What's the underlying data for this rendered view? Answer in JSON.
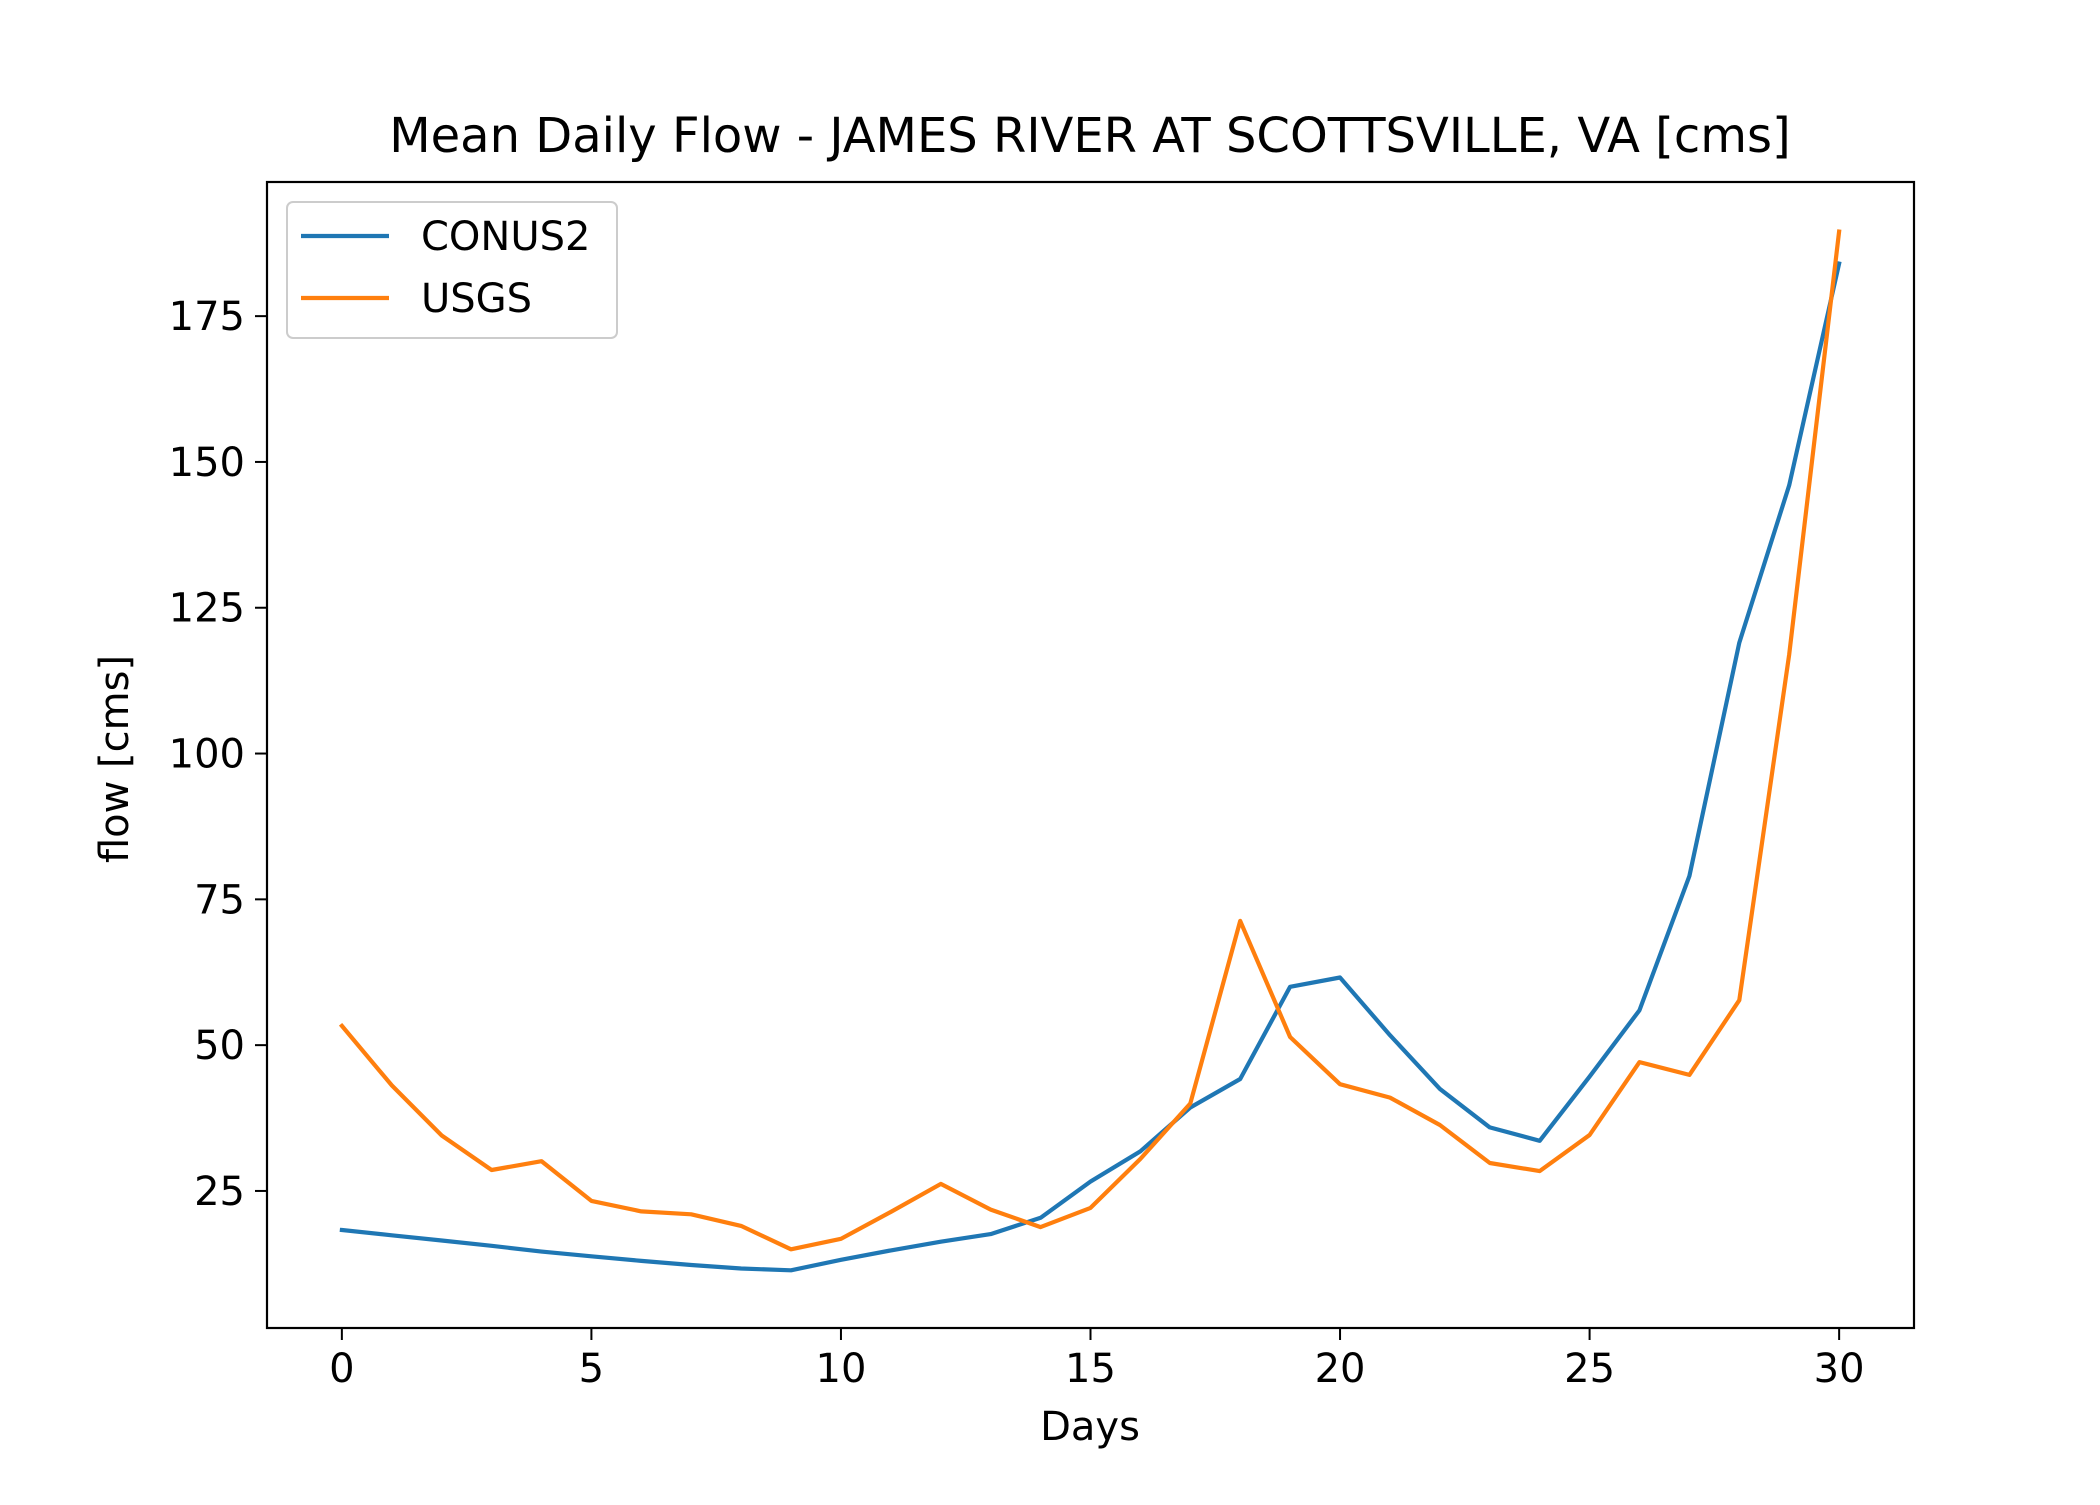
{
  "chart_data": {
    "type": "line",
    "title": "Mean Daily Flow - JAMES RIVER AT SCOTTSVILLE, VA [cms]",
    "xlabel": "Days",
    "ylabel": "flow [cms]",
    "xlim": [
      -1.5,
      31.5
    ],
    "ylim": [
      1.5,
      198
    ],
    "xticks": [
      0,
      5,
      10,
      15,
      20,
      25,
      30
    ],
    "yticks": [
      25,
      50,
      75,
      100,
      125,
      150,
      175
    ],
    "grid": false,
    "legend_position": "upper left",
    "x": [
      0,
      1,
      2,
      3,
      4,
      5,
      6,
      7,
      8,
      9,
      10,
      11,
      12,
      13,
      14,
      15,
      16,
      17,
      18,
      19,
      20,
      21,
      22,
      23,
      24,
      25,
      26,
      27,
      28,
      29,
      30
    ],
    "series": [
      {
        "name": "CONUS2",
        "color": "#1f77b4",
        "values": [
          18.3,
          17.4,
          16.5,
          15.6,
          14.6,
          13.8,
          13.0,
          12.3,
          11.7,
          11.4,
          13.2,
          14.8,
          16.3,
          17.6,
          20.4,
          26.6,
          31.8,
          39.3,
          44.2,
          60.0,
          61.6,
          51.7,
          42.5,
          35.9,
          33.6,
          44.6,
          56.0,
          79.0,
          119.0,
          146.0,
          184.0
        ]
      },
      {
        "name": "USGS",
        "color": "#ff7f0e",
        "values": [
          53.3,
          43.1,
          34.5,
          28.6,
          30.1,
          23.3,
          21.5,
          21.0,
          19.0,
          15.0,
          16.8,
          21.4,
          26.2,
          21.8,
          18.8,
          22.1,
          30.5,
          40.0,
          71.3,
          51.4,
          43.3,
          41.0,
          36.3,
          29.8,
          28.4,
          34.6,
          47.1,
          44.9,
          57.7,
          117.0,
          189.5
        ]
      }
    ]
  }
}
